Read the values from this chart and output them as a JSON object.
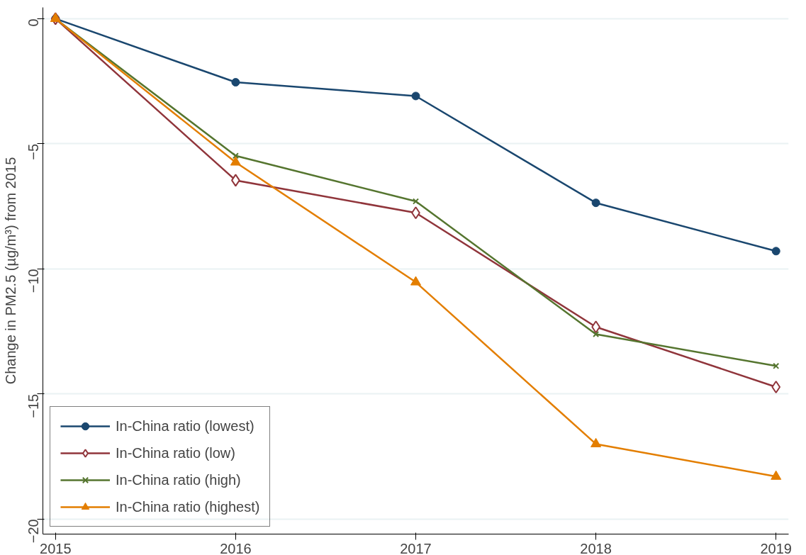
{
  "chart_data": {
    "type": "line",
    "ylabel": "Change in PM2.5 (µg/m³) from 2015",
    "x": [
      2015,
      2016,
      2017,
      2018,
      2019
    ],
    "xlim": [
      2014.93,
      2019.07
    ],
    "xticks": [
      2015,
      2016,
      2017,
      2018,
      2019
    ],
    "ylim": [
      -20.6,
      0.45
    ],
    "yticks": [
      -20,
      -15,
      -10,
      -5,
      0
    ],
    "grid": "y",
    "legend": "bottom left",
    "series": [
      {
        "name": "In-China ratio (lowest)",
        "color": "#1a476f",
        "marker": "circle",
        "values": [
          0,
          -2.54,
          -3.09,
          -7.36,
          -9.29
        ]
      },
      {
        "name": "In-China ratio (low)",
        "color": "#90353b",
        "marker": "diamond",
        "values": [
          0,
          -6.46,
          -7.76,
          -12.32,
          -14.72
        ]
      },
      {
        "name": "In-China ratio (high)",
        "color": "#55752f",
        "marker": "cross",
        "values": [
          0,
          -5.48,
          -7.3,
          -12.61,
          -13.88
        ]
      },
      {
        "name": "In-China ratio (highest)",
        "color": "#e37e00",
        "marker": "triangle",
        "values": [
          0,
          -5.74,
          -10.53,
          -17.0,
          -18.3
        ]
      }
    ]
  }
}
